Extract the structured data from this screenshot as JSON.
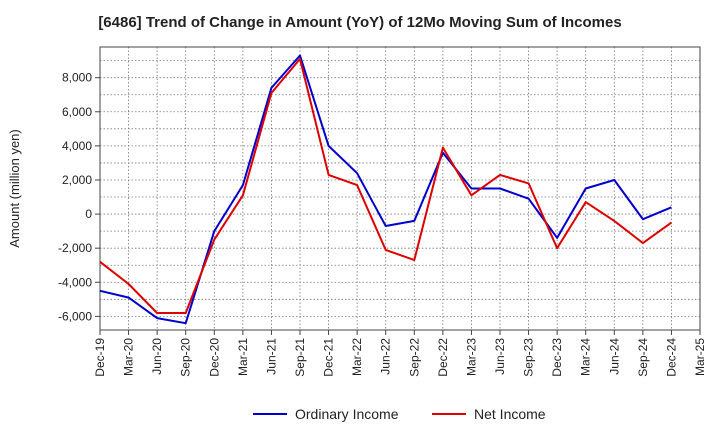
{
  "chart_data": {
    "type": "line",
    "title": "[6486]  Trend of Change in Amount (YoY) of 12Mo Moving Sum of Incomes",
    "xlabel": "",
    "ylabel": "Amount (million yen)",
    "categories": [
      "Dec-19",
      "Mar-20",
      "Jun-20",
      "Sep-20",
      "Dec-20",
      "Mar-21",
      "Jun-21",
      "Sep-21",
      "Dec-21",
      "Mar-22",
      "Jun-22",
      "Sep-22",
      "Dec-22",
      "Mar-23",
      "Jun-23",
      "Sep-23",
      "Dec-23",
      "Mar-24",
      "Jun-24",
      "Sep-24",
      "Dec-24",
      "Mar-25"
    ],
    "ylim": [
      -6800,
      9800
    ],
    "yticks": [
      -6000,
      -4000,
      -2000,
      0,
      2000,
      4000,
      6000,
      8000
    ],
    "ytick_labels": [
      "-6,000",
      "-4,000",
      "-2,000",
      "0",
      "2,000",
      "4,000",
      "6,000",
      "8,000"
    ],
    "grid": true,
    "legend_position": "bottom-center",
    "series": [
      {
        "name": "Ordinary Income",
        "color": "#0000cc",
        "values": [
          -4500,
          -4900,
          -6100,
          -6400,
          -1000,
          1700,
          7400,
          9300,
          4000,
          2400,
          -700,
          -400,
          3600,
          1500,
          1500,
          900,
          -1400,
          1500,
          2000,
          -300,
          400,
          null
        ]
      },
      {
        "name": "Net Income",
        "color": "#dd0000",
        "values": [
          -2800,
          -4100,
          -5800,
          -5800,
          -1500,
          1100,
          7100,
          9100,
          2300,
          1700,
          -2100,
          -2700,
          3900,
          1100,
          2300,
          1800,
          -2000,
          700,
          -400,
          -1700,
          -500,
          null
        ]
      }
    ]
  }
}
